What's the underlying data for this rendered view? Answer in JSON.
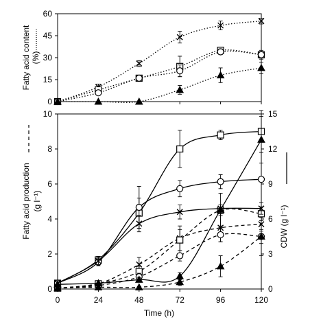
{
  "chart_data": [
    {
      "type": "line",
      "panel": "top",
      "x": [
        0,
        24,
        48,
        72,
        96,
        120
      ],
      "ylabel_line1": "Fatty acid content",
      "ylabel_line2": "(%)",
      "ylim": [
        0,
        60
      ],
      "yticks": [
        "0",
        "15",
        "30",
        "45",
        "60"
      ],
      "line_style": "dotted",
      "series": [
        {
          "marker": "x",
          "values": [
            0,
            10,
            26,
            44,
            52,
            55
          ],
          "err": [
            0,
            2,
            2,
            4,
            3,
            2
          ]
        },
        {
          "marker": "open-square",
          "values": [
            0,
            8,
            16,
            24,
            35,
            32
          ],
          "err": [
            0,
            1,
            2,
            7,
            2,
            3
          ]
        },
        {
          "marker": "open-circle",
          "values": [
            0,
            6,
            16,
            21,
            34,
            32
          ],
          "err": [
            0,
            1,
            2,
            4,
            2,
            2
          ]
        },
        {
          "marker": "filled-triangle",
          "values": [
            0,
            0,
            0,
            8,
            18,
            23
          ],
          "err": [
            0,
            0,
            0,
            3,
            5,
            4
          ]
        }
      ]
    },
    {
      "type": "line",
      "panel": "bottom",
      "x": [
        0,
        24,
        48,
        72,
        96,
        120
      ],
      "xlabel": "Time (h)",
      "xticks": [
        "0",
        "24",
        "48",
        "72",
        "96",
        "120"
      ],
      "ylabel_left_line1": "Fatty acid production",
      "ylabel_left_line2": "(g l⁻¹)",
      "ylabel_right": "CDW (g l⁻¹)",
      "ylim_left": [
        0,
        10
      ],
      "yticks_left": [
        "0",
        "2",
        "4",
        "6",
        "8",
        "10"
      ],
      "ylim_right": [
        0,
        15
      ],
      "yticks_right": [
        "0",
        "3",
        "6",
        "9",
        "12",
        "15"
      ],
      "cdw_series": [
        {
          "marker": "open-square",
          "values": [
            0.5,
            2.5,
            6.5,
            12.0,
            13.2,
            13.5
          ],
          "err": [
            0,
            0.3,
            1.3,
            1.6,
            0.4,
            1.8
          ]
        },
        {
          "marker": "open-circle",
          "values": [
            0.5,
            2.3,
            7.0,
            8.6,
            9.2,
            9.4
          ],
          "err": [
            0,
            0.3,
            1.8,
            0.7,
            0.6,
            0.2
          ]
        },
        {
          "marker": "x",
          "values": [
            0.5,
            2.4,
            5.6,
            6.6,
            6.9,
            6.9
          ],
          "err": [
            0,
            0.3,
            0.7,
            0.6,
            0.3,
            0.5
          ]
        },
        {
          "marker": "filled-triangle",
          "values": [
            0.4,
            0.5,
            0.8,
            1.1,
            6.8,
            12.8
          ],
          "err": [
            0,
            0.2,
            0.2,
            0.3,
            1.4,
            2.0
          ]
        }
      ],
      "production_series": [
        {
          "marker": "x",
          "values": [
            0.05,
            0.3,
            1.4,
            2.9,
            3.5,
            3.7
          ],
          "err": [
            0,
            0.15,
            0.4,
            0.7,
            0.8,
            0.4
          ]
        },
        {
          "marker": "open-square",
          "values": [
            0.05,
            0.3,
            1.0,
            2.8,
            4.5,
            4.3
          ],
          "err": [
            0,
            0.15,
            0.3,
            0.6,
            0.3,
            0.4
          ]
        },
        {
          "marker": "open-circle",
          "values": [
            0.05,
            0.2,
            0.7,
            1.9,
            3.1,
            3.0
          ],
          "err": [
            0,
            0.1,
            0.2,
            0.3,
            0.4,
            0.4
          ]
        },
        {
          "marker": "filled-triangle",
          "values": [
            0.05,
            0.1,
            0.1,
            0.4,
            1.3,
            3.0
          ],
          "err": [
            0,
            0.05,
            0.05,
            0.2,
            0.6,
            1.1
          ]
        }
      ]
    }
  ]
}
